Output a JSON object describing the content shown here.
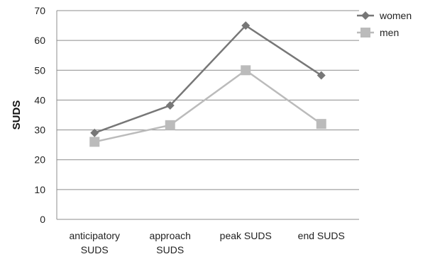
{
  "chart_data": {
    "type": "line",
    "title": "",
    "xlabel": "",
    "ylabel": "SUDS",
    "categories": [
      [
        "anticipatory",
        "SUDS"
      ],
      [
        "approach",
        "SUDS"
      ],
      [
        "peak SUDS"
      ],
      [
        "end SUDS"
      ]
    ],
    "yticks": [
      0,
      10,
      20,
      30,
      40,
      50,
      60,
      70
    ],
    "ylim": [
      0,
      70
    ],
    "grid": "horizontal",
    "legend_position": "top-right",
    "series": [
      {
        "name": "women",
        "values": [
          29,
          38.2,
          65,
          48.3
        ],
        "color": "#777777",
        "marker": "diamond"
      },
      {
        "name": "men",
        "values": [
          26,
          31.6,
          50,
          32
        ],
        "color": "#bbbbbb",
        "marker": "square"
      }
    ]
  }
}
